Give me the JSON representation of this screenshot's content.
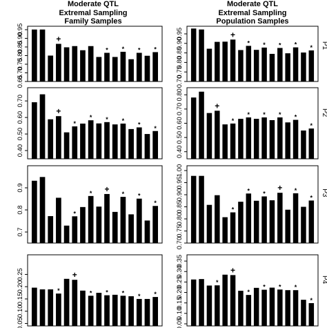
{
  "titles": {
    "left": [
      "Moderate QTL",
      "Extremal Sampling",
      "Family Samples"
    ],
    "right": [
      "Moderate QTL",
      "Extremal Sampling",
      "Population Samples"
    ]
  },
  "chart_data": [
    {
      "type": "bar",
      "panel": "left-P1",
      "ylim": [
        0.65,
        0.97
      ],
      "yticks": [
        0.65,
        0.7,
        0.75,
        0.8,
        0.85,
        0.9,
        0.95
      ],
      "ytick_labels": [
        "0.65",
        "0.70",
        "0.75",
        "0.80",
        "0.85",
        "0.90",
        "0.95"
      ],
      "values": [
        0.951,
        0.951,
        0.8,
        0.868,
        0.848,
        0.855,
        0.831,
        0.855,
        0.792,
        0.816,
        0.792,
        0.822,
        0.779,
        0.816,
        0.799,
        0.82
      ],
      "markers": [
        {
          "bar": 3,
          "symbol": "+"
        },
        {
          "bar": 9,
          "symbol": "*"
        },
        {
          "bar": 11,
          "symbol": "*"
        },
        {
          "bar": 13,
          "symbol": "*"
        },
        {
          "bar": 15,
          "symbol": "*"
        }
      ]
    },
    {
      "type": "bar",
      "panel": "right-P1",
      "ylim": [
        0.7,
        0.99
      ],
      "yticks": [
        0.7,
        0.75,
        0.8,
        0.85,
        0.9,
        0.95
      ],
      "ytick_labels": [
        "0.70",
        "0.75",
        "0.80",
        "0.85",
        "0.90",
        "0.95"
      ],
      "panel_label": "P1",
      "values": [
        0.978,
        0.973,
        0.872,
        0.908,
        0.909,
        0.92,
        0.865,
        0.887,
        0.866,
        0.878,
        0.845,
        0.876,
        0.848,
        0.879,
        0.852,
        0.863
      ],
      "markers": [
        {
          "bar": 5,
          "symbol": "+"
        },
        {
          "bar": 7,
          "symbol": "*"
        },
        {
          "bar": 9,
          "symbol": "*"
        },
        {
          "bar": 11,
          "symbol": "*"
        },
        {
          "bar": 13,
          "symbol": "*"
        },
        {
          "bar": 15,
          "symbol": "*"
        }
      ]
    },
    {
      "type": "bar",
      "panel": "left-P2",
      "ylim": [
        0.35,
        0.78
      ],
      "yticks": [
        0.4,
        0.5,
        0.6,
        0.7
      ],
      "ytick_labels": [
        "0.40",
        "0.50",
        "0.60",
        "0.70"
      ],
      "values": [
        0.692,
        0.74,
        0.589,
        0.608,
        0.51,
        0.546,
        0.563,
        0.583,
        0.564,
        0.572,
        0.558,
        0.563,
        0.53,
        0.54,
        0.5,
        0.518
      ],
      "markers": [
        {
          "bar": 3,
          "symbol": "+"
        },
        {
          "bar": 5,
          "symbol": "*"
        },
        {
          "bar": 7,
          "symbol": "*"
        },
        {
          "bar": 9,
          "symbol": "*"
        },
        {
          "bar": 11,
          "symbol": "*"
        },
        {
          "bar": 13,
          "symbol": "*"
        },
        {
          "bar": 15,
          "symbol": "*"
        }
      ]
    },
    {
      "type": "bar",
      "panel": "right-P2",
      "ylim": [
        0.35,
        0.85
      ],
      "yticks": [
        0.4,
        0.5,
        0.6,
        0.7,
        0.8
      ],
      "ytick_labels": [
        "0.40",
        "0.50",
        "0.60",
        "0.70",
        "0.80"
      ],
      "panel_label": "P2",
      "values": [
        0.781,
        0.822,
        0.672,
        0.688,
        0.592,
        0.598,
        0.631,
        0.641,
        0.631,
        0.641,
        0.622,
        0.641,
        0.606,
        0.624,
        0.549,
        0.563
      ],
      "markers": [
        {
          "bar": 3,
          "symbol": "+"
        },
        {
          "bar": 5,
          "symbol": "*"
        },
        {
          "bar": 7,
          "symbol": "*"
        },
        {
          "bar": 9,
          "symbol": "*"
        },
        {
          "bar": 11,
          "symbol": "*"
        },
        {
          "bar": 13,
          "symbol": "*"
        },
        {
          "bar": 15,
          "symbol": "*"
        }
      ]
    },
    {
      "type": "bar",
      "panel": "left-P3",
      "ylim": [
        0.65,
        1.0
      ],
      "yticks": [
        0.7,
        0.8,
        0.9
      ],
      "ytick_labels": [
        "0.7",
        "0.8",
        "0.9"
      ],
      "values": [
        0.932,
        0.949,
        0.772,
        0.855,
        0.729,
        0.771,
        0.813,
        0.863,
        0.815,
        0.872,
        0.791,
        0.859,
        0.78,
        0.851,
        0.752,
        0.818
      ],
      "markers": [
        {
          "bar": 5,
          "symbol": "*"
        },
        {
          "bar": 7,
          "symbol": "*"
        },
        {
          "bar": 9,
          "symbol": "+"
        },
        {
          "bar": 11,
          "symbol": "*"
        },
        {
          "bar": 13,
          "symbol": "*"
        },
        {
          "bar": 15,
          "symbol": "*"
        }
      ]
    },
    {
      "type": "bar",
      "panel": "right-P3",
      "ylim": [
        0.7,
        1.02
      ],
      "yticks": [
        0.7,
        0.75,
        0.8,
        0.85,
        0.9,
        0.95,
        1.0
      ],
      "ytick_labels": [
        "0.70",
        "0.75",
        "0.80",
        "0.85",
        "0.90",
        "0.95",
        "1.00"
      ],
      "panel_label": "P3",
      "values": [
        0.978,
        0.978,
        0.858,
        0.898,
        0.807,
        0.827,
        0.871,
        0.905,
        0.875,
        0.893,
        0.877,
        0.908,
        0.838,
        0.906,
        0.85,
        0.876
      ],
      "markers": [
        {
          "bar": 5,
          "symbol": "*"
        },
        {
          "bar": 7,
          "symbol": "*"
        },
        {
          "bar": 9,
          "symbol": "*"
        },
        {
          "bar": 11,
          "symbol": "+"
        },
        {
          "bar": 13,
          "symbol": "*"
        },
        {
          "bar": 15,
          "symbol": "*"
        }
      ]
    },
    {
      "type": "bar",
      "panel": "left-P4",
      "ylim": [
        0.04,
        0.33
      ],
      "yticks": [
        0.05,
        0.1,
        0.15,
        0.2,
        0.25
      ],
      "ytick_labels": [
        "0.05",
        "0.10",
        "0.15",
        "0.20",
        "0.25"
      ],
      "values": [
        0.196,
        0.189,
        0.189,
        0.172,
        0.232,
        0.228,
        0.184,
        0.163,
        0.175,
        0.165,
        0.167,
        0.163,
        0.161,
        0.15,
        0.15,
        0.158
      ],
      "markers": [
        {
          "bar": 3,
          "symbol": "*"
        },
        {
          "bar": 5,
          "symbol": "+"
        },
        {
          "bar": 7,
          "symbol": "*"
        },
        {
          "bar": 9,
          "symbol": "*"
        },
        {
          "bar": 11,
          "symbol": "*"
        },
        {
          "bar": 13,
          "symbol": "*"
        },
        {
          "bar": 15,
          "symbol": "*"
        }
      ]
    },
    {
      "type": "bar",
      "panel": "right-P4",
      "ylim": [
        0.04,
        0.38
      ],
      "yticks": [
        0.05,
        0.1,
        0.15,
        0.2,
        0.25,
        0.3,
        0.35
      ],
      "ytick_labels": [
        "0.05",
        "0.10",
        "0.15",
        "0.20",
        "0.25",
        "0.30",
        "0.35"
      ],
      "panel_label": "P4",
      "values": [
        0.262,
        0.264,
        0.233,
        0.234,
        0.285,
        0.283,
        0.208,
        0.188,
        0.222,
        0.213,
        0.223,
        0.214,
        0.211,
        0.211,
        0.165,
        0.149
      ],
      "markers": [
        {
          "bar": 3,
          "symbol": "*"
        },
        {
          "bar": 5,
          "symbol": "+"
        },
        {
          "bar": 7,
          "symbol": "*"
        },
        {
          "bar": 9,
          "symbol": "*"
        },
        {
          "bar": 11,
          "symbol": "*"
        },
        {
          "bar": 13,
          "symbol": "*"
        },
        {
          "bar": 15,
          "symbol": "*"
        }
      ]
    }
  ]
}
